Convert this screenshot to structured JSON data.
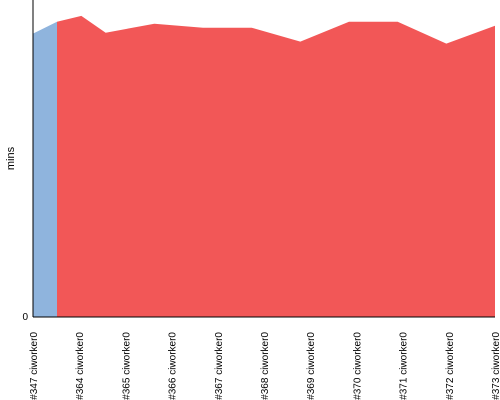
{
  "chart_data": {
    "type": "area",
    "ylabel": "mins",
    "ylim": [
      0,
      16
    ],
    "y_ticks": [
      0
    ],
    "grid": false,
    "x": [
      "#347 ciworker0",
      "#364 ciworker0",
      "#365 ciworker0",
      "#366 ciworker0",
      "#367 ciworker0",
      "#368 ciworker0",
      "#369 ciworker0",
      "#370 ciworker0",
      "#371 ciworker0",
      "#372 ciworker0",
      "#373 ciworker0"
    ],
    "extra_points": [
      {
        "after": "#364 ciworker0",
        "fraction": 0.5,
        "value": 15.2
      },
      {
        "after": "#370 ciworker0",
        "fraction": 0.5,
        "value": 14.9
      }
    ],
    "segments": [
      {
        "color": "#8fb4dd",
        "from": "#347 ciworker0",
        "to": "#347 ciworker0",
        "first_value": 14.3,
        "edge_value": 14.9
      },
      {
        "color": "#f25757",
        "from": "#364 ciworker0",
        "to": "#373 ciworker0"
      }
    ],
    "values": [
      14.3,
      14.9,
      14.35,
      14.8,
      14.6,
      14.6,
      13.9,
      14.9,
      14.9,
      13.8,
      14.7
    ],
    "colors": {
      "early": "#8fb4dd",
      "main": "#f25757",
      "axis": "#000000"
    }
  }
}
